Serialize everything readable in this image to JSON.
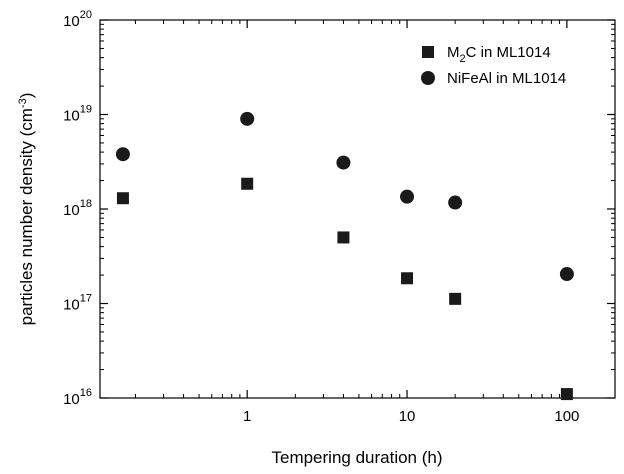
{
  "chart_data": {
    "type": "scatter",
    "title": "",
    "xlabel": "Tempering duration (h)",
    "ylabel": {
      "main": "particles number density (cm",
      "sup": "-3",
      "end": ")"
    },
    "x_scale": "log",
    "y_scale": "log",
    "xlim": [
      0.12,
      200
    ],
    "ylim": [
      1e+16,
      1e+20
    ],
    "grid": false,
    "legend_position": "top-right",
    "x_ticks": [
      {
        "value": 1,
        "label": "1"
      },
      {
        "value": 10,
        "label": "10"
      },
      {
        "value": 100,
        "label": "100"
      }
    ],
    "y_ticks": [
      {
        "exp": 16,
        "base": "10",
        "sup": "16"
      },
      {
        "exp": 17,
        "base": "10",
        "sup": "17"
      },
      {
        "exp": 18,
        "base": "10",
        "sup": "18"
      },
      {
        "exp": 19,
        "base": "10",
        "sup": "19"
      },
      {
        "exp": 20,
        "base": "10",
        "sup": "20"
      }
    ],
    "series": [
      {
        "name": "M2C in ML1014",
        "legend": {
          "pre": "M",
          "sub": "2",
          "post": "C in ML1014"
        },
        "marker": "square",
        "color": "#1a1a1a",
        "points": [
          {
            "x": 0.167,
            "y": 1.3e+18
          },
          {
            "x": 1,
            "y": 1.85e+18
          },
          {
            "x": 4,
            "y": 5e+17
          },
          {
            "x": 10,
            "y": 1.85e+17
          },
          {
            "x": 20,
            "y": 1.12e+17
          },
          {
            "x": 100,
            "y": 1.1e+16
          }
        ]
      },
      {
        "name": "NiFeAl in ML1014",
        "legend": {
          "pre": "NiFeAl in ML1014",
          "sub": "",
          "post": ""
        },
        "marker": "circle",
        "color": "#1a1a1a",
        "points": [
          {
            "x": 0.167,
            "y": 3.8e+18
          },
          {
            "x": 1,
            "y": 9e+18
          },
          {
            "x": 4,
            "y": 3.1e+18
          },
          {
            "x": 10,
            "y": 1.35e+18
          },
          {
            "x": 20,
            "y": 1.17e+18
          },
          {
            "x": 100,
            "y": 2.05e+17
          }
        ]
      }
    ]
  }
}
